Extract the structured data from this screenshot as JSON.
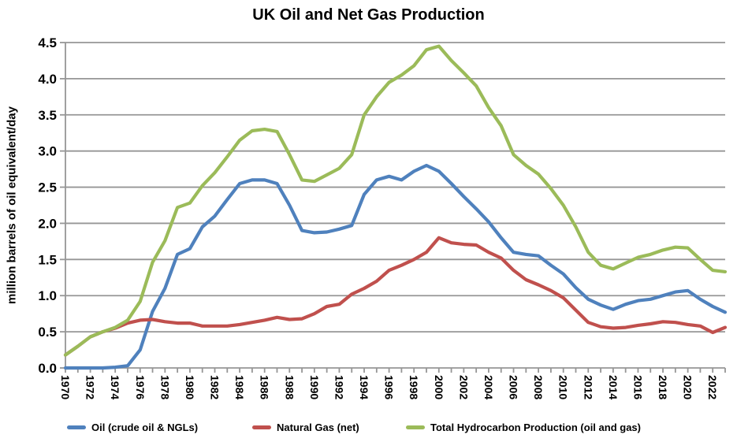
{
  "chart_data": {
    "type": "line",
    "title": "UK Oil and Net Gas Production",
    "ylabel": "million barrels of oil equivalent/day",
    "xlabel": "",
    "ylim": [
      0,
      4.5
    ],
    "ytick_labels": [
      "0.0",
      "0.5",
      "1.0",
      "1.5",
      "2.0",
      "2.5",
      "3.0",
      "3.5",
      "4.0",
      "4.5"
    ],
    "xlim": [
      1970,
      2023
    ],
    "xtick_minor_step": 1,
    "xtick_labels": [
      "1970",
      "1972",
      "1974",
      "1976",
      "1978",
      "1980",
      "1982",
      "1984",
      "1986",
      "1988",
      "1990",
      "1992",
      "1994",
      "1996",
      "1998",
      "2000",
      "2002",
      "2004",
      "2006",
      "2008",
      "2010",
      "2012",
      "2014",
      "2016",
      "2018",
      "2020",
      "2022"
    ],
    "grid": "horizontal",
    "legend_position": "bottom",
    "gridline_color": "#969696",
    "text_color": "#000000",
    "background_color": "#ffffff",
    "x": [
      1970,
      1971,
      1972,
      1973,
      1974,
      1975,
      1976,
      1977,
      1978,
      1979,
      1980,
      1981,
      1982,
      1983,
      1984,
      1985,
      1986,
      1987,
      1988,
      1989,
      1990,
      1991,
      1992,
      1993,
      1994,
      1995,
      1996,
      1997,
      1998,
      1999,
      2000,
      2001,
      2002,
      2003,
      2004,
      2005,
      2006,
      2007,
      2008,
      2009,
      2010,
      2011,
      2012,
      2013,
      2014,
      2015,
      2016,
      2017,
      2018,
      2019,
      2020,
      2021,
      2022,
      2023
    ],
    "series": [
      {
        "name": "Oil (crude oil & NGLs)",
        "color": "#4F81BD",
        "values": [
          0.0,
          0.0,
          0.0,
          0.0,
          0.01,
          0.03,
          0.25,
          0.78,
          1.1,
          1.57,
          1.65,
          1.95,
          2.1,
          2.33,
          2.55,
          2.6,
          2.6,
          2.55,
          2.25,
          1.9,
          1.87,
          1.88,
          1.92,
          1.97,
          2.4,
          2.6,
          2.65,
          2.6,
          2.72,
          2.8,
          2.72,
          2.55,
          2.37,
          2.2,
          2.02,
          1.8,
          1.6,
          1.57,
          1.55,
          1.42,
          1.3,
          1.11,
          0.95,
          0.87,
          0.81,
          0.88,
          0.93,
          0.95,
          1.0,
          1.05,
          1.07,
          0.95,
          0.85,
          0.77
        ]
      },
      {
        "name": "Natural Gas (net)",
        "color": "#C0504D",
        "values": [
          0.18,
          0.3,
          0.43,
          0.5,
          0.55,
          0.62,
          0.66,
          0.67,
          0.64,
          0.62,
          0.62,
          0.58,
          0.58,
          0.58,
          0.6,
          0.63,
          0.66,
          0.7,
          0.67,
          0.68,
          0.75,
          0.85,
          0.88,
          1.02,
          1.1,
          1.2,
          1.35,
          1.42,
          1.5,
          1.6,
          1.8,
          1.73,
          1.71,
          1.7,
          1.6,
          1.52,
          1.35,
          1.22,
          1.15,
          1.07,
          0.97,
          0.8,
          0.63,
          0.57,
          0.55,
          0.56,
          0.59,
          0.61,
          0.64,
          0.63,
          0.6,
          0.58,
          0.49,
          0.56
        ]
      },
      {
        "name": "Total Hydrocarbon Production (oil and gas)",
        "color": "#9BBB59",
        "values": [
          0.18,
          0.3,
          0.43,
          0.5,
          0.56,
          0.66,
          0.92,
          1.46,
          1.76,
          2.22,
          2.28,
          2.52,
          2.7,
          2.92,
          3.15,
          3.28,
          3.3,
          3.27,
          2.95,
          2.6,
          2.58,
          2.67,
          2.76,
          2.95,
          3.5,
          3.75,
          3.95,
          4.05,
          4.18,
          4.4,
          4.45,
          4.25,
          4.08,
          3.9,
          3.6,
          3.35,
          2.95,
          2.8,
          2.68,
          2.48,
          2.25,
          1.95,
          1.6,
          1.42,
          1.37,
          1.45,
          1.53,
          1.57,
          1.63,
          1.67,
          1.66,
          1.5,
          1.35,
          1.33
        ]
      }
    ]
  }
}
